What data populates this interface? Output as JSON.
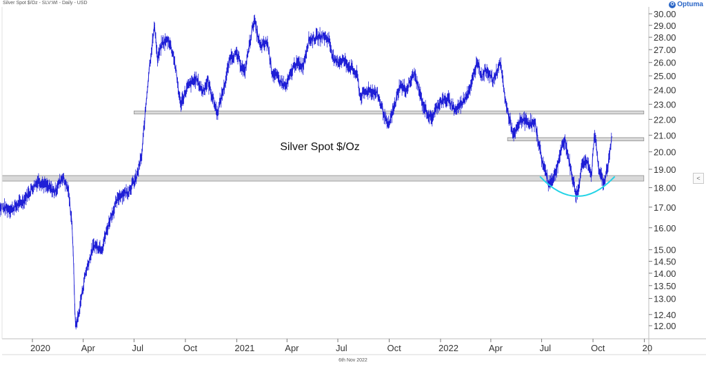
{
  "header": {
    "instrument": "Silver Spot $/Oz - SLV:WI - Daily - USD",
    "logo_text": "Optuma",
    "logo_mark": "O"
  },
  "footer": {
    "date_label": "6th Nov 2022"
  },
  "controls": {
    "collapse_icon": "chevron-left-icon",
    "collapse_glyph": "<"
  },
  "chart_data": {
    "type": "line",
    "title": "Silver Spot $/Oz",
    "y_scale": "log",
    "ylim": [
      11.5,
      30.5
    ],
    "y_ticks": [
      "30.00",
      "29.00",
      "28.00",
      "27.00",
      "26.00",
      "25.00",
      "24.00",
      "23.00",
      "22.00",
      "21.00",
      "20.00",
      "19.00",
      "18.00",
      "17.00",
      "16.00",
      "15.00",
      "14.50",
      "14.00",
      "13.50",
      "13.00",
      "12.40",
      "12.00"
    ],
    "x_ticks": [
      "2020",
      "Apr",
      "Jul",
      "Oct",
      "2021",
      "Apr",
      "Jul",
      "Oct",
      "2022",
      "Apr",
      "Jul",
      "Oct",
      "20"
    ],
    "grid": false,
    "series": [
      {
        "color": "#1f1fd6",
        "points": [
          [
            "2019-11-01",
            17.0
          ],
          [
            "2019-11-25",
            16.9
          ],
          [
            "2019-12-15",
            17.3
          ],
          [
            "2020-01-01",
            18.0
          ],
          [
            "2020-01-12",
            18.4
          ],
          [
            "2020-01-25",
            18.1
          ],
          [
            "2020-02-10",
            17.8
          ],
          [
            "2020-02-24",
            18.6
          ],
          [
            "2020-03-05",
            17.9
          ],
          [
            "2020-03-12",
            16.2
          ],
          [
            "2020-03-18",
            12.0
          ],
          [
            "2020-03-23",
            12.3
          ],
          [
            "2020-04-05",
            14.0
          ],
          [
            "2020-04-20",
            15.2
          ],
          [
            "2020-05-05",
            15.1
          ],
          [
            "2020-05-20",
            16.5
          ],
          [
            "2020-06-05",
            17.6
          ],
          [
            "2020-06-20",
            17.8
          ],
          [
            "2020-07-05",
            18.5
          ],
          [
            "2020-07-15",
            19.8
          ],
          [
            "2020-07-22",
            22.8
          ],
          [
            "2020-07-28",
            25.5
          ],
          [
            "2020-08-07",
            29.0
          ],
          [
            "2020-08-12",
            26.2
          ],
          [
            "2020-08-20",
            27.5
          ],
          [
            "2020-09-01",
            27.8
          ],
          [
            "2020-09-10",
            26.5
          ],
          [
            "2020-09-22",
            23.0
          ],
          [
            "2020-10-05",
            24.2
          ],
          [
            "2020-10-20",
            24.8
          ],
          [
            "2020-11-01",
            23.9
          ],
          [
            "2020-11-10",
            24.6
          ],
          [
            "2020-11-27",
            22.4
          ],
          [
            "2020-12-10",
            24.3
          ],
          [
            "2020-12-21",
            26.5
          ],
          [
            "2021-01-01",
            26.6
          ],
          [
            "2021-01-15",
            25.2
          ],
          [
            "2021-02-01",
            29.5
          ],
          [
            "2021-02-12",
            27.2
          ],
          [
            "2021-02-25",
            27.6
          ],
          [
            "2021-03-05",
            25.3
          ],
          [
            "2021-03-30",
            24.2
          ],
          [
            "2021-04-15",
            25.9
          ],
          [
            "2021-04-30",
            25.8
          ],
          [
            "2021-05-10",
            27.8
          ],
          [
            "2021-05-25",
            28.0
          ],
          [
            "2021-06-05",
            28.1
          ],
          [
            "2021-06-15",
            27.8
          ],
          [
            "2021-06-25",
            26.0
          ],
          [
            "2021-07-10",
            26.2
          ],
          [
            "2021-07-25",
            25.6
          ],
          [
            "2021-08-05",
            25.0
          ],
          [
            "2021-08-10",
            23.5
          ],
          [
            "2021-08-25",
            24.0
          ],
          [
            "2021-09-10",
            23.7
          ],
          [
            "2021-09-29",
            21.5
          ],
          [
            "2021-10-10",
            22.8
          ],
          [
            "2021-10-20",
            24.3
          ],
          [
            "2021-11-01",
            24.0
          ],
          [
            "2021-11-15",
            25.2
          ],
          [
            "2021-11-30",
            23.0
          ],
          [
            "2021-12-15",
            22.0
          ],
          [
            "2021-12-31",
            23.2
          ],
          [
            "2022-01-15",
            23.3
          ],
          [
            "2022-01-28",
            22.6
          ],
          [
            "2022-02-10",
            23.2
          ],
          [
            "2022-02-25",
            24.3
          ],
          [
            "2022-03-08",
            26.2
          ],
          [
            "2022-03-15",
            25.0
          ],
          [
            "2022-03-25",
            25.5
          ],
          [
            "2022-04-05",
            24.6
          ],
          [
            "2022-04-18",
            26.0
          ],
          [
            "2022-04-28",
            23.0
          ],
          [
            "2022-05-12",
            20.9
          ],
          [
            "2022-05-25",
            22.0
          ],
          [
            "2022-06-10",
            21.8
          ],
          [
            "2022-06-20",
            21.6
          ],
          [
            "2022-07-01",
            19.6
          ],
          [
            "2022-07-14",
            18.2
          ],
          [
            "2022-07-25",
            18.7
          ],
          [
            "2022-08-05",
            20.1
          ],
          [
            "2022-08-12",
            20.7
          ],
          [
            "2022-08-22",
            19.0
          ],
          [
            "2022-09-01",
            17.6
          ],
          [
            "2022-09-05",
            17.9
          ],
          [
            "2022-09-12",
            19.5
          ],
          [
            "2022-09-20",
            19.4
          ],
          [
            "2022-09-28",
            18.6
          ],
          [
            "2022-10-04",
            21.1
          ],
          [
            "2022-10-12",
            19.0
          ],
          [
            "2022-10-20",
            18.2
          ],
          [
            "2022-10-28",
            19.2
          ],
          [
            "2022-11-04",
            20.9
          ]
        ]
      }
    ],
    "support_zones": [
      {
        "from": "2019-11-01",
        "to": "2022-12-31",
        "low": 18.35,
        "high": 18.65
      },
      {
        "from": "2020-07-01",
        "to": "2022-12-31",
        "low": 22.35,
        "high": 22.55
      },
      {
        "from": "2022-05-01",
        "to": "2022-12-31",
        "low": 20.65,
        "high": 20.85
      }
    ],
    "annotation_arc": {
      "from": "2022-06-28",
      "to": "2022-11-09",
      "edge_value": 18.6,
      "bottom_value": 17.55,
      "color": "#22d3e6"
    },
    "colors": {
      "line": "#1f1fd6",
      "zone_fill": "#d9d9d9",
      "zone_stroke": "#8f8f8f",
      "arc": "#22d3e6"
    }
  }
}
